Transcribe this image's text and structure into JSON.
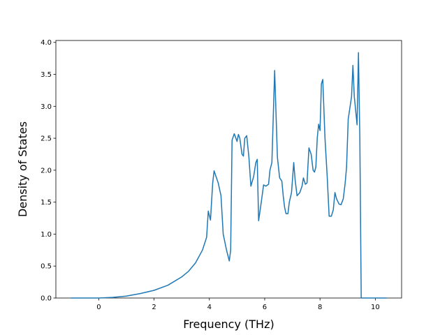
{
  "chart_data": {
    "type": "line",
    "xlabel": "Frequency (THz)",
    "ylabel": "Density of States",
    "xlim": [
      -1.55,
      10.95
    ],
    "ylim": [
      0,
      4.03
    ],
    "xticks": [
      0,
      2,
      4,
      6,
      8,
      10
    ],
    "yticks": [
      {
        "value": 0,
        "label": "0.0"
      },
      {
        "value": 0.5,
        "label": "0.5"
      },
      {
        "value": 1,
        "label": "1.0"
      },
      {
        "value": 1.5,
        "label": "1.5"
      },
      {
        "value": 2,
        "label": "2.0"
      },
      {
        "value": 2.5,
        "label": "2.5"
      },
      {
        "value": 3,
        "label": "3.0"
      },
      {
        "value": 3.5,
        "label": "3.5"
      },
      {
        "value": 4,
        "label": "4.0"
      }
    ],
    "series": [
      {
        "color": "#1f77b4",
        "x": [
          -1,
          -0.5,
          0,
          0.5,
          1,
          1.5,
          2,
          2.5,
          3,
          3.25,
          3.5,
          3.75,
          3.9,
          3.96,
          4.04,
          4.12,
          4.17,
          4.32,
          4.42,
          4.5,
          4.62,
          4.72,
          4.77,
          4.82,
          4.9,
          5.0,
          5.05,
          5.1,
          5.18,
          5.23,
          5.28,
          5.35,
          5.43,
          5.5,
          5.6,
          5.68,
          5.73,
          5.78,
          5.86,
          5.96,
          6.04,
          6.14,
          6.19,
          6.26,
          6.36,
          6.46,
          6.54,
          6.62,
          6.67,
          6.72,
          6.77,
          6.84,
          6.89,
          6.97,
          7.05,
          7.1,
          7.17,
          7.27,
          7.35,
          7.4,
          7.47,
          7.53,
          7.6,
          7.68,
          7.75,
          7.8,
          7.85,
          7.9,
          7.95,
          8.0,
          8.05,
          8.1,
          8.18,
          8.26,
          8.33,
          8.41,
          8.48,
          8.54,
          8.6,
          8.69,
          8.76,
          8.84,
          8.91,
          8.96,
          9.02,
          9.14,
          9.19,
          9.24,
          9.34,
          9.39,
          9.44,
          9.49,
          10.0,
          10.4
        ],
        "values": [
          0,
          0,
          0,
          0.01,
          0.03,
          0.07,
          0.12,
          0.2,
          0.33,
          0.42,
          0.55,
          0.75,
          0.95,
          1.36,
          1.22,
          1.8,
          1.99,
          1.8,
          1.6,
          1.0,
          0.75,
          0.58,
          0.75,
          2.47,
          2.57,
          2.45,
          2.56,
          2.5,
          2.25,
          2.22,
          2.5,
          2.54,
          2.2,
          1.75,
          1.9,
          2.12,
          2.17,
          1.21,
          1.45,
          1.77,
          1.75,
          1.78,
          2.0,
          2.12,
          3.56,
          2.2,
          1.88,
          1.83,
          1.6,
          1.42,
          1.32,
          1.32,
          1.5,
          1.65,
          2.12,
          1.85,
          1.6,
          1.65,
          1.75,
          1.88,
          1.78,
          1.8,
          2.35,
          2.25,
          2.0,
          1.97,
          2.05,
          2.5,
          2.72,
          2.62,
          3.35,
          3.42,
          2.5,
          1.9,
          1.28,
          1.28,
          1.38,
          1.65,
          1.55,
          1.47,
          1.46,
          1.55,
          1.8,
          2.05,
          2.8,
          3.15,
          3.64,
          3.15,
          2.71,
          3.84,
          2.5,
          0,
          0,
          0
        ]
      }
    ]
  }
}
